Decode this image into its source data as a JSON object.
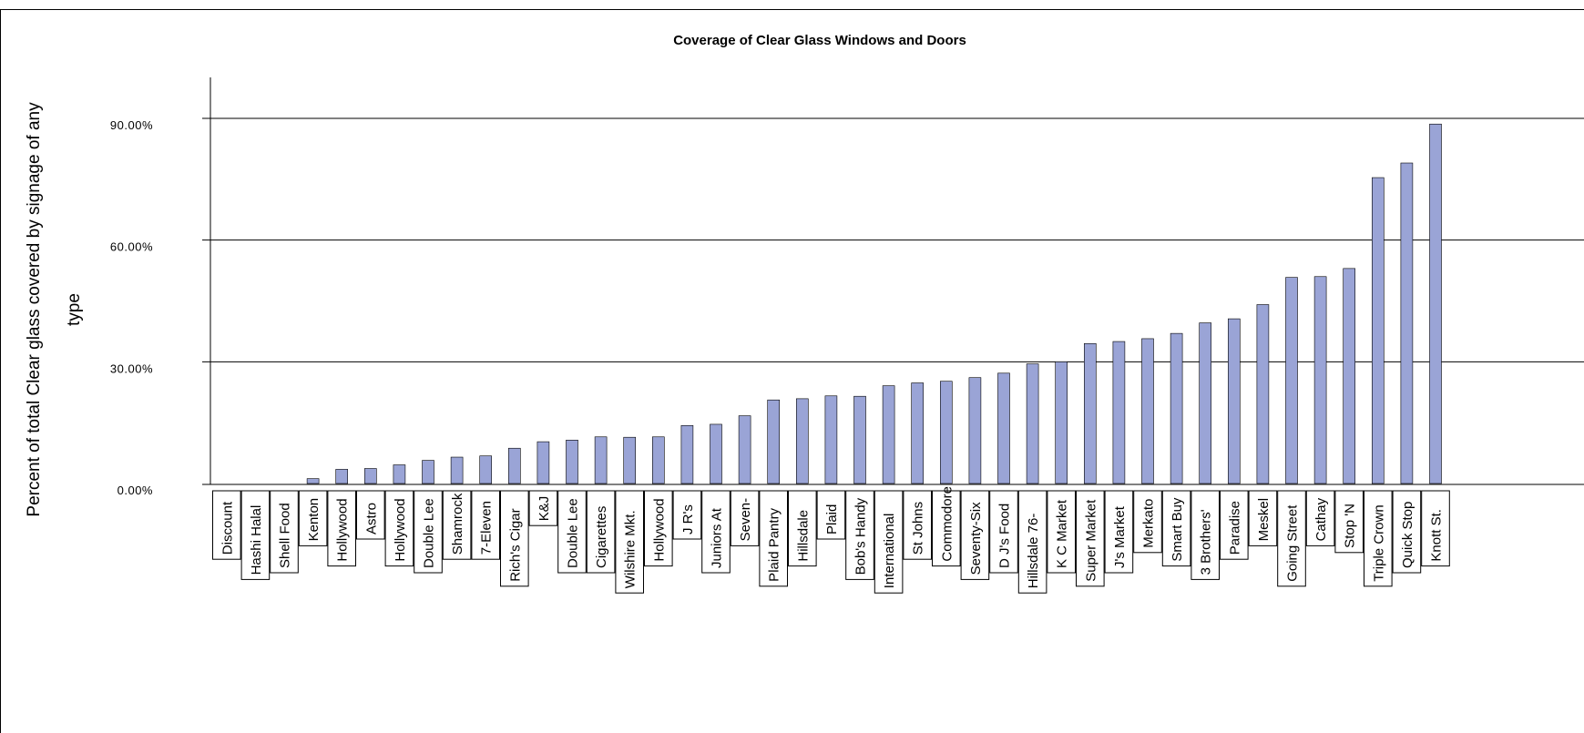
{
  "chart_data": {
    "type": "bar",
    "title": "Coverage of Clear Glass Windows and Doors",
    "xlabel": "",
    "ylabel": "Percent of total Clear glass covered by signage of any type",
    "ylim": [
      0,
      1.0
    ],
    "yticks": [
      0,
      0.3,
      0.6,
      0.9
    ],
    "ytick_labels": [
      "0.00%",
      "30.00%",
      "60.00%",
      "90.00%"
    ],
    "grid": true,
    "legend": "none",
    "bar_color": "#9aa4d6",
    "categories": [
      "Discount",
      "Hashi Halal",
      "Shell Food",
      "Kenton",
      "Hollywood",
      "Astro",
      "Hollywood",
      "Double Lee",
      "Shamrock",
      "7-Eleven",
      "Rich's Cigar",
      "K&J",
      "Double Lee",
      "Cigarettes",
      "Wilshire Mkt.",
      "Hollywood",
      "J R's",
      "Juniors At",
      "Seven-",
      "Plaid Pantry",
      "Hillsdale",
      "Plaid",
      "Bob's Handy",
      "International",
      "St Johns",
      "Commodore",
      "Seventy-Six",
      "D J's Food",
      "Hillsdale 76-",
      "K C Market",
      "Super Market",
      "J's Market",
      "Merkato",
      "Smart Buy",
      "3 Brothers'",
      "Paradise",
      "Meskel",
      "Going Street",
      "Cathay",
      "Stop 'N",
      "Triple Crown",
      "Quick Stop",
      "Knott St."
    ],
    "values": [
      0.0,
      0.0,
      0.0,
      0.012,
      0.035,
      0.037,
      0.046,
      0.057,
      0.065,
      0.068,
      0.087,
      0.103,
      0.107,
      0.115,
      0.114,
      0.115,
      0.143,
      0.146,
      0.167,
      0.206,
      0.209,
      0.216,
      0.215,
      0.241,
      0.248,
      0.252,
      0.261,
      0.272,
      0.295,
      0.3,
      0.345,
      0.35,
      0.357,
      0.37,
      0.396,
      0.406,
      0.441,
      0.508,
      0.51,
      0.53,
      0.754,
      0.79,
      0.886
    ]
  }
}
